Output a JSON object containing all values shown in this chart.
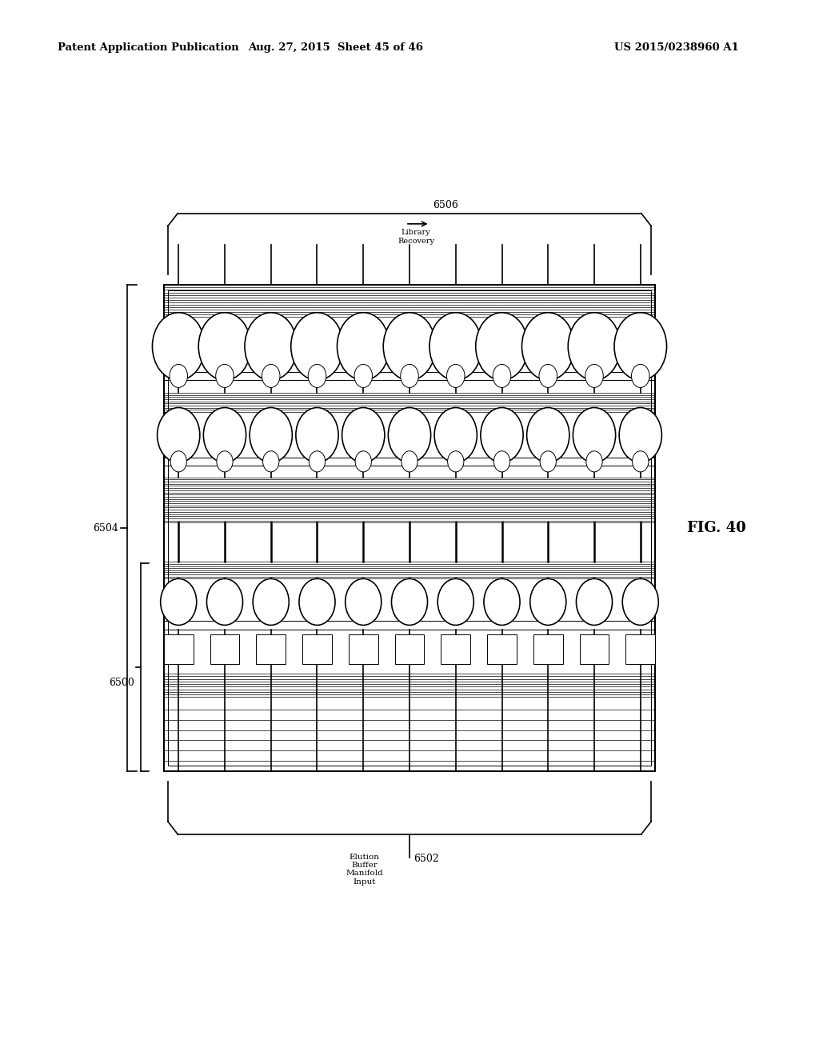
{
  "title_left": "Patent Application Publication",
  "title_mid": "Aug. 27, 2015  Sheet 45 of 46",
  "title_right": "US 2015/0238960 A1",
  "fig_label": "FIG. 40",
  "label_6500": "6500",
  "label_6502": "6502",
  "label_6504": "6504",
  "label_6506": "6506",
  "text_library_recovery": "Library\nRecovery",
  "text_elution": "Elution\nBuffer\nManifold\nInput",
  "bg_color": "#ffffff",
  "line_color": "#000000"
}
